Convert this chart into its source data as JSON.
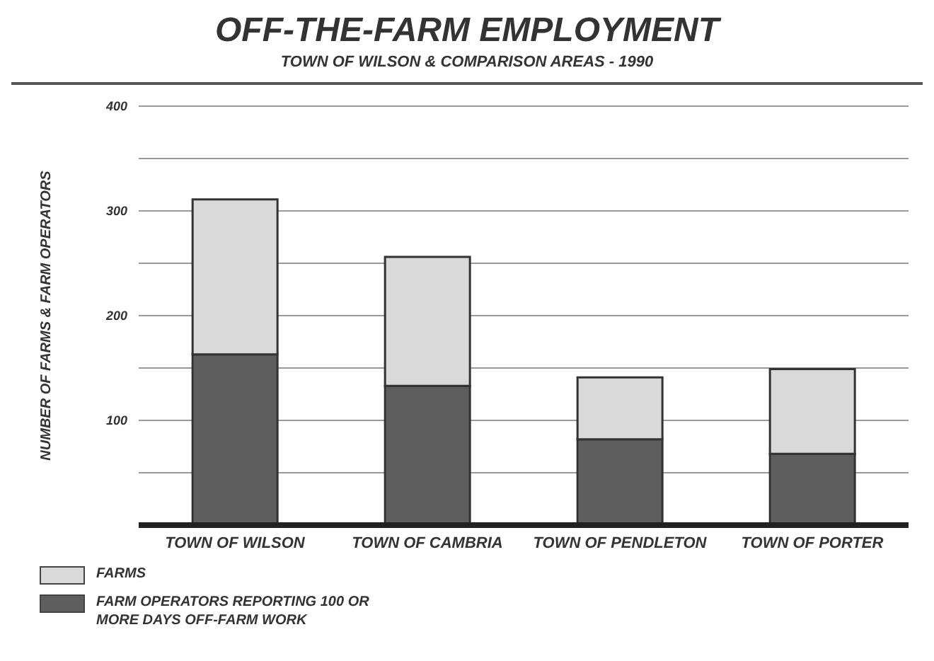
{
  "chart_data": {
    "type": "bar",
    "title": "OFF-THE-FARM EMPLOYMENT",
    "subtitle": "TOWN OF WILSON & COMPARISON AREAS - 1990",
    "ylabel": "NUMBER OF FARMS & FARM OPERATORS",
    "categories": [
      "TOWN OF WILSON",
      "TOWN OF CAMBRIA",
      "TOWN OF PENDLETON",
      "TOWN OF PORTER"
    ],
    "stacked": true,
    "series": [
      {
        "name": "FARM OPERATORS REPORTING 100 OR MORE DAYS OFF-FARM WORK",
        "color": "#5e5e5e",
        "values": [
          163,
          133,
          82,
          68
        ]
      },
      {
        "name": "FARMS",
        "color": "#d9d9d9",
        "values": [
          148,
          123,
          59,
          81
        ]
      }
    ],
    "ylim": [
      0,
      400
    ],
    "yticks": [
      {
        "value": 0,
        "label": null
      },
      {
        "value": 50,
        "label": null
      },
      100,
      {
        "value": 150,
        "label": null
      },
      200,
      {
        "value": 250,
        "label": null
      },
      300,
      {
        "value": 350,
        "label": null
      },
      400
    ],
    "grid": "y",
    "legend": "bottom left"
  }
}
